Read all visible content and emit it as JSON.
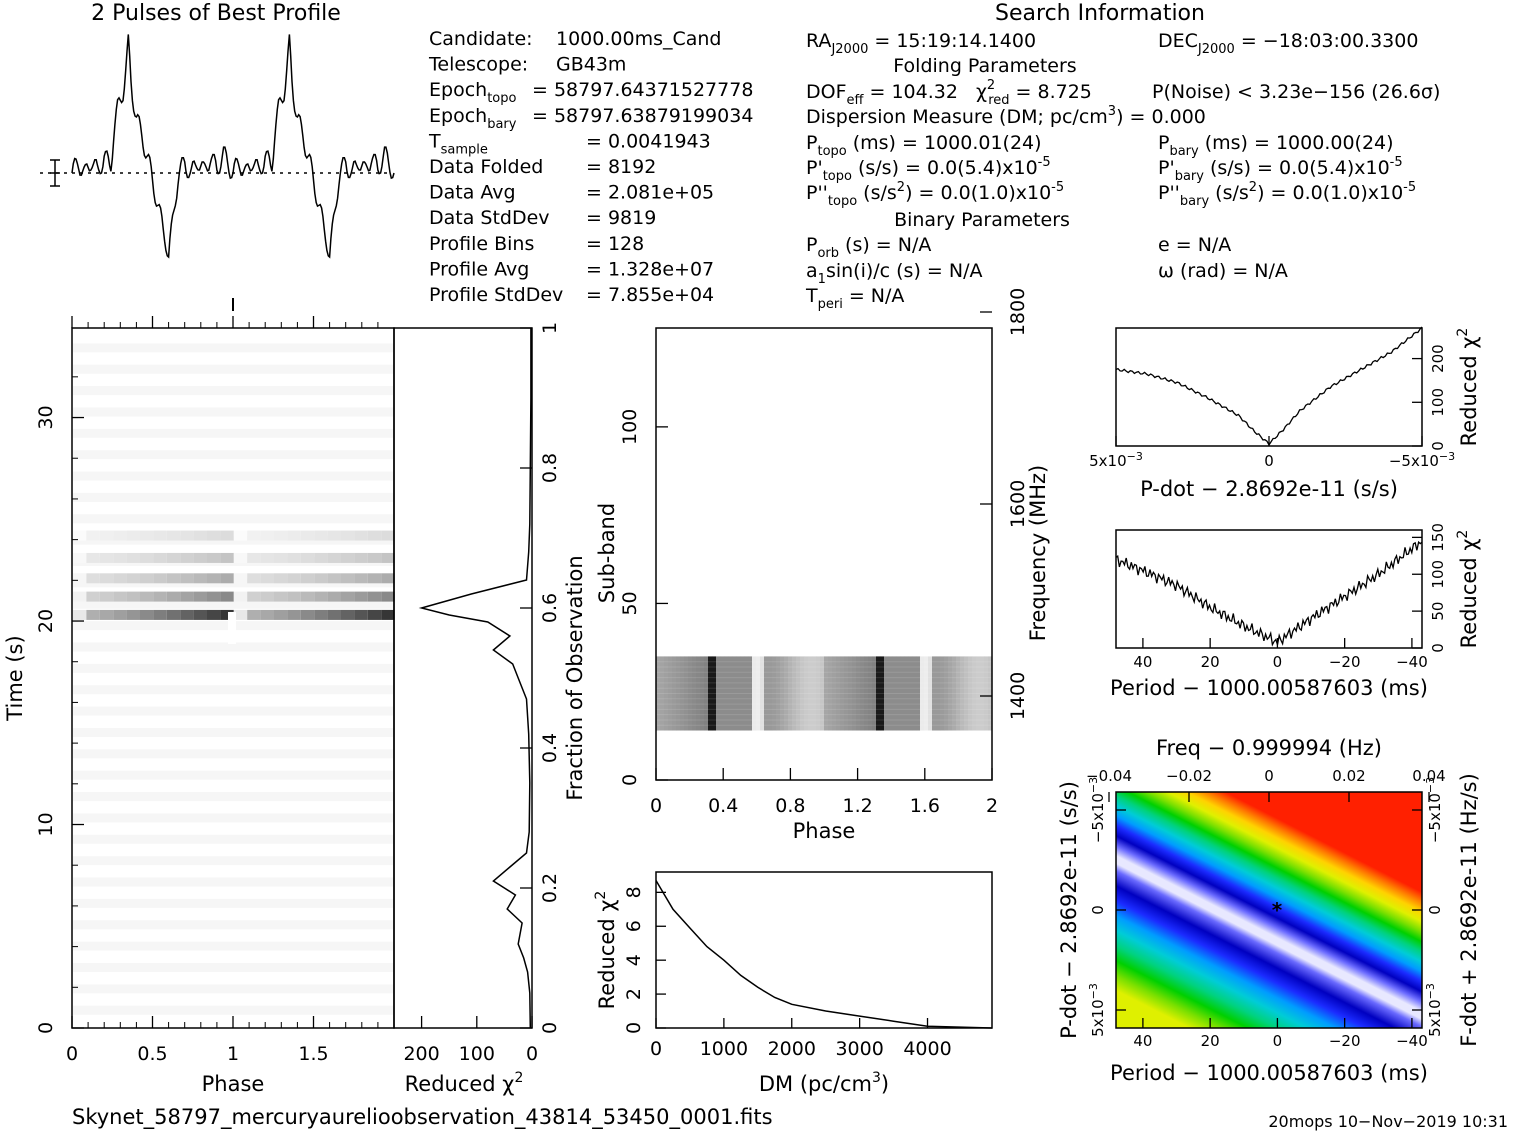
{
  "profile_title": "2 Pulses of Best Profile",
  "search_title": "Search Information",
  "left_info": [
    {
      "label": "Candidate:",
      "sub": "",
      "value": "1000.00ms_Cand"
    },
    {
      "label": "Telescope:",
      "sub": "",
      "value": "GB43m"
    },
    {
      "label": "Epoch",
      "sub": "topo",
      "value": "= 58797.64371527778"
    },
    {
      "label": "Epoch",
      "sub": "bary",
      "value": "= 58797.63879199034"
    },
    {
      "label": "T",
      "sub": "sample",
      "value": "=   0.0041943"
    },
    {
      "label": "Data Folded",
      "sub": "",
      "value": "=   8192"
    },
    {
      "label": "Data Avg",
      "sub": "",
      "value": "=   2.081e+05"
    },
    {
      "label": "Data StdDev",
      "sub": "",
      "value": "=   9819"
    },
    {
      "label": "Profile Bins",
      "sub": "",
      "value": "=   128"
    },
    {
      "label": "Profile Avg",
      "sub": "",
      "value": "=   1.328e+07"
    },
    {
      "label": "Profile StdDev",
      "sub": "",
      "value": "=   7.855e+04"
    }
  ],
  "mid_info": {
    "ra": "RA",
    "ra_sub": "J2000",
    "ra_value": "= 15:19:14.1400",
    "folding_header": "Folding Parameters",
    "dof": "DOF",
    "dof_sub": "eff",
    "dof_value": "= 104.32",
    "chi": "χ",
    "chi_sup": "2",
    "chi_sub": "red",
    "chi_value": "= 8.725",
    "dm_line": "Dispersion Measure (DM; pc/cm",
    "dm_sup": "3",
    "dm_value": ") = 0.000",
    "ptopo": "P",
    "ptopo_sub": "topo",
    "ptopo_value": "(ms) =   1000.01(24)",
    "pdtopo": "P'",
    "pdtopo_sub": "topo",
    "pdtopo_value": "(s/s) = 0.0(5.4)x10",
    "pdtopo_exp": "-5",
    "pddtopo": "P''",
    "pddtopo_sub": "topo",
    "pddtopo_value": "(s/s",
    "pddtopo_sup": "2",
    "pddtopo_rest": ") = 0.0(1.0)x10",
    "pddtopo_exp": "-5",
    "binary_header": "Binary Parameters",
    "porb": "P",
    "porb_sub": "orb",
    "porb_value": "(s) = N/A",
    "a1": "a",
    "a1_sub": "1",
    "a1_value": "sin(i)/c (s) = N/A",
    "tperi": "T",
    "tperi_sub": "peri",
    "tperi_value": "= N/A"
  },
  "right_info": {
    "dec": "DEC",
    "dec_sub": "J2000",
    "dec_value": "= −18:03:00.3300",
    "pnoise": "P(Noise) < 3.23e−156   (26.6σ)",
    "pbary": "P",
    "pbary_sub": "bary",
    "pbary_value": "(ms) =   1000.00(24)",
    "pdbary": "P'",
    "pdbary_sub": "bary",
    "pdbary_value": "(s/s) = 0.0(5.4)x10",
    "pdbary_exp": "-5",
    "pddbary": "P''",
    "pddbary_sub": "bary",
    "pddbary_value": "(s/s",
    "pddbary_sup": "2",
    "pddbary_rest": ") = 0.0(1.0)x10",
    "pddbary_exp": "-5",
    "ecc": "e = N/A",
    "omega": "ω (rad) = N/A"
  },
  "footer": {
    "filename": "Skynet_58797_mercuryaurelioobservation_43814_53450_0001.fits",
    "stamp": "20mops  10−Nov−2019  10:31"
  },
  "colors": {
    "axis": "#000000",
    "background": "#ffffff"
  },
  "chart_data": [
    {
      "type": "line",
      "name_key": "profile",
      "title": "2 Pulses of Best Profile",
      "xlabel": "",
      "ylabel": "",
      "x_range": [
        0,
        2
      ],
      "notes": "two identical pulse profiles; narrow spike near phase 0.35 and 1.35, deep dip near 0.6 and 1.6",
      "phase": [
        0,
        0.04,
        0.08,
        0.12,
        0.16,
        0.2,
        0.24,
        0.26,
        0.28,
        0.3,
        0.32,
        0.34,
        0.35,
        0.37,
        0.4,
        0.44,
        0.48,
        0.52,
        0.55,
        0.58,
        0.6,
        0.62,
        0.64,
        0.66,
        0.7,
        0.74,
        0.78,
        0.82,
        0.86,
        0.9,
        0.94,
        0.98,
        1.0
      ],
      "level": [
        0.0,
        0.4,
        -0.1,
        0.5,
        0.0,
        0.6,
        0.2,
        1.5,
        2.2,
        2.6,
        3.0,
        4.0,
        4.6,
        3.0,
        2.0,
        1.2,
        0.3,
        -0.8,
        -1.6,
        -2.3,
        -3.0,
        -2.0,
        -1.0,
        -0.1,
        0.4,
        -0.1,
        0.5,
        0.0,
        0.6,
        0.1,
        0.7,
        0.2,
        0.0
      ]
    },
    {
      "type": "heatmap",
      "name_key": "time_phase",
      "xlabel": "Phase",
      "ylabel": "Time (s)",
      "xlim": [
        0,
        2
      ],
      "ylim": [
        0,
        34.4
      ],
      "xticks": [
        "0",
        "0.5",
        "1",
        "1.5"
      ],
      "yticks": [
        "0",
        "10",
        "20",
        "30"
      ],
      "right_axis_label": "Fraction of Observation",
      "right_ticks": [
        "0",
        "0.2",
        "0.4",
        "0.6",
        "0.8",
        "1"
      ],
      "bright_rows_time_s": [
        20.3,
        21.2,
        22.1,
        23.1,
        24.2
      ],
      "intensity": [
        0.85,
        0.5,
        0.35,
        0.25,
        0.15
      ]
    },
    {
      "type": "line",
      "name_key": "reduced_chi_vs_time",
      "xlabel": "Reduced χ²",
      "xticks": [
        "200",
        "100",
        "0"
      ],
      "x_range": [
        250,
        0
      ],
      "y_fraction": [
        0.0,
        0.05,
        0.08,
        0.1,
        0.12,
        0.15,
        0.17,
        0.19,
        0.21,
        0.23,
        0.25,
        0.28,
        0.35,
        0.42,
        0.47,
        0.5,
        0.52,
        0.54,
        0.56,
        0.58,
        0.59,
        0.6,
        0.62,
        0.64,
        0.66,
        0.68,
        0.72,
        0.8,
        0.9,
        1.0
      ],
      "chi2": [
        3,
        4,
        8,
        15,
        25,
        18,
        45,
        30,
        70,
        40,
        10,
        5,
        4,
        6,
        10,
        25,
        35,
        70,
        40,
        80,
        150,
        200,
        110,
        10,
        8,
        6,
        4,
        3,
        2,
        2
      ]
    },
    {
      "type": "heatmap",
      "name_key": "subband_phase",
      "xlabel": "Phase",
      "ylabel": "Sub-band",
      "xlim": [
        0,
        2
      ],
      "ylim": [
        0,
        128
      ],
      "xticks": [
        "0",
        "0.4",
        "0.8",
        "1.2",
        "1.6",
        "2"
      ],
      "yticks": [
        "0",
        "50",
        "100"
      ],
      "right_axis_label": "Frequency (MHz)",
      "right_ticks": [
        "1400",
        "1600",
        "1800"
      ],
      "filled_subbands": [
        14,
        35
      ]
    },
    {
      "type": "line",
      "name_key": "dm_curve",
      "xlabel": "DM (pc/cm³)",
      "ylabel": "Reduced χ²",
      "xlim": [
        0,
        4950
      ],
      "ylim": [
        0,
        9.2
      ],
      "xticks": [
        "0",
        "1000",
        "2000",
        "3000",
        "4000"
      ],
      "yticks": [
        "0",
        "2",
        "4",
        "6",
        "8"
      ],
      "x": [
        0,
        250,
        500,
        750,
        1000,
        1250,
        1500,
        1750,
        2000,
        2500,
        3000,
        3500,
        4000,
        4950
      ],
      "y": [
        8.7,
        7.0,
        5.9,
        4.8,
        4.0,
        3.1,
        2.4,
        1.8,
        1.4,
        1.0,
        0.7,
        0.4,
        0.1,
        0.0
      ]
    },
    {
      "type": "line",
      "name_key": "pdot_curve",
      "xlabel": "P-dot − 2.8692e-11 (s/s)",
      "ylabel": "Reduced χ²",
      "xticks": [
        "5x10",
        "0",
        "−5x10"
      ],
      "xtick_exp": "−3",
      "yticks": [
        "0",
        "100",
        "200"
      ],
      "xlim": [
        1,
        -1
      ],
      "ylim": [
        0,
        270
      ],
      "x": [
        1.0,
        0.8,
        0.6,
        0.4,
        0.2,
        0.1,
        0.0,
        -0.1,
        -0.2,
        -0.4,
        -0.6,
        -0.8,
        -1.0
      ],
      "y": [
        175,
        165,
        145,
        110,
        70,
        35,
        5,
        40,
        80,
        135,
        175,
        215,
        270
      ]
    },
    {
      "type": "line",
      "name_key": "period_curve",
      "xlabel": "Period − 1000.00587603 (ms)",
      "ylabel": "Reduced χ²",
      "xticks": [
        "40",
        "20",
        "0",
        "−20",
        "−40"
      ],
      "yticks": [
        "0",
        "50",
        "100",
        "150"
      ],
      "xlim": [
        48,
        -43
      ],
      "ylim": [
        0,
        160
      ],
      "x": [
        48,
        40,
        30,
        20,
        10,
        0,
        -10,
        -20,
        -30,
        -43
      ],
      "y": [
        120,
        105,
        85,
        55,
        30,
        8,
        40,
        70,
        100,
        145
      ]
    },
    {
      "type": "heatmap",
      "name_key": "period_pdot",
      "title": "Freq − 0.999994 (Hz)",
      "xlabel": "Period − 1000.00587603 (ms)",
      "ylabel": "P-dot − 2.8692e-11 (s/s)",
      "right_axis_label": "F-dot + 2.8692e-11 (Hz/s)",
      "xticks": [
        "40",
        "20",
        "0",
        "−20",
        "−40"
      ],
      "top_ticks": [
        "−0.04",
        "−0.02",
        "0",
        "0.02",
        "0.04"
      ],
      "yticks": [
        "5x10",
        "0",
        "−5x10"
      ],
      "ytick_exp": "−3",
      "right_ticks": [
        "−5x10",
        "0",
        "5x10"
      ],
      "colormap": [
        "#ff2000",
        "#ff7d00",
        "#ffd200",
        "#dff000",
        "#7ae000",
        "#00d000",
        "#00d27e",
        "#00ccd6",
        "#009cff",
        "#1b2bff",
        "#0000c0",
        "#6a6aff",
        "#e8e8ff"
      ]
    }
  ]
}
